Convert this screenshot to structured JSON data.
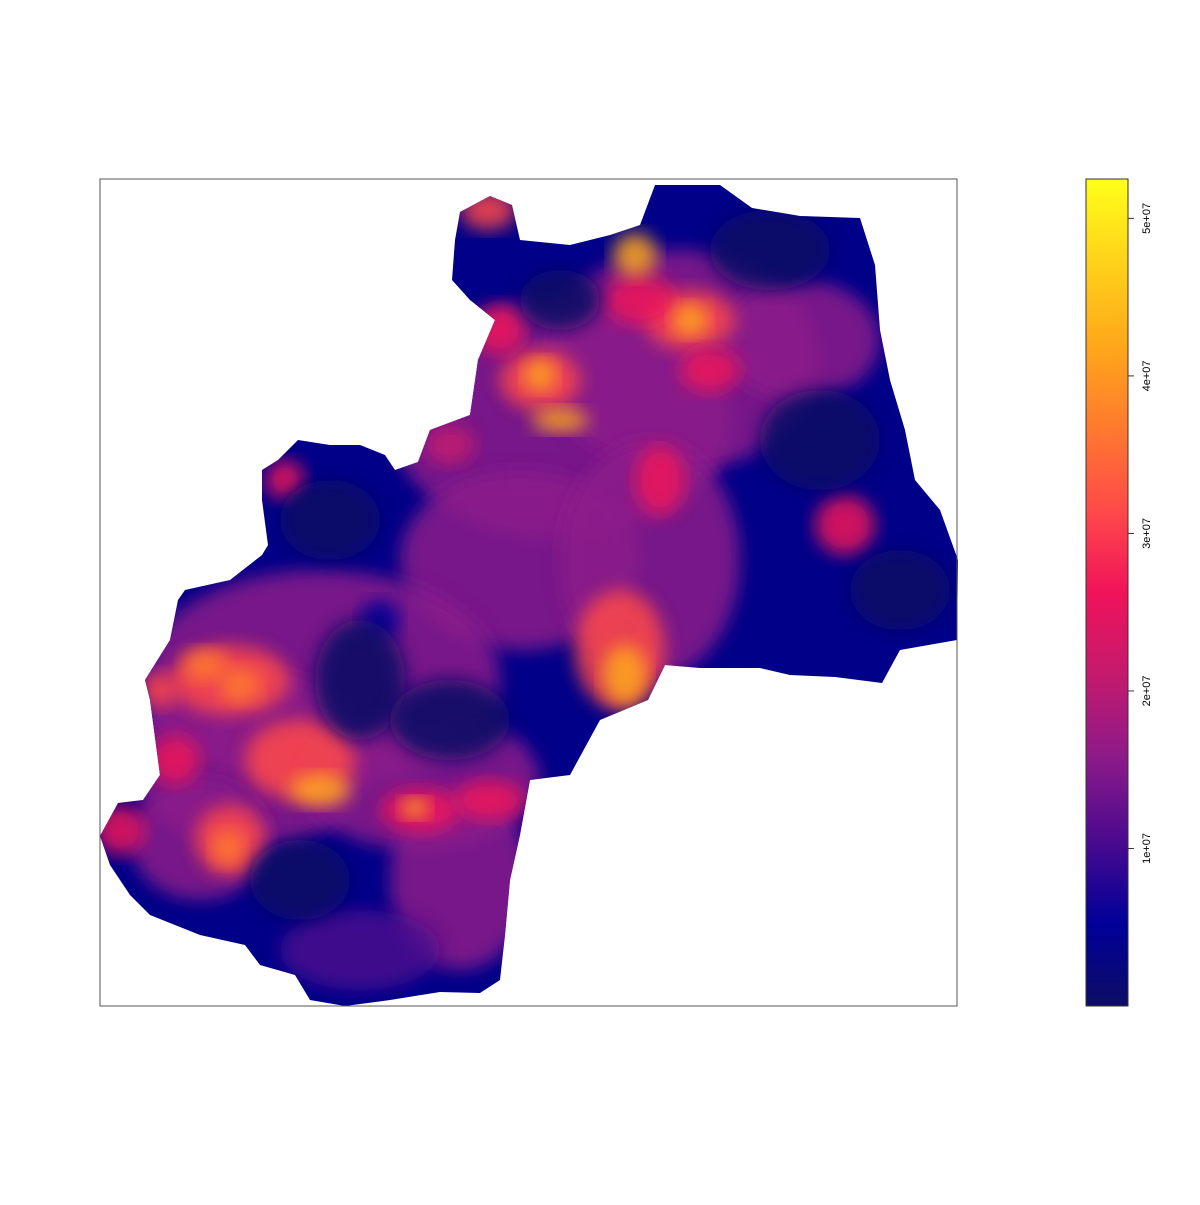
{
  "chart_data": {
    "type": "heatmap",
    "title": "",
    "xlabel": "",
    "ylabel": "",
    "legend": {
      "position": "right",
      "range": [
        0,
        52500000
      ],
      "ticks": [
        {
          "value": 10000000,
          "label": "1e+07"
        },
        {
          "value": 20000000,
          "label": "2e+07"
        },
        {
          "value": 30000000,
          "label": "3e+07"
        },
        {
          "value": 40000000,
          "label": "4e+07"
        },
        {
          "value": 50000000,
          "label": "5e+07"
        }
      ],
      "colors": [
        "#0d0d66",
        "#000099",
        "#4b0a8f",
        "#8c1a8a",
        "#c41a6e",
        "#f0135a",
        "#ff4a4a",
        "#ff7a2e",
        "#ffa81a",
        "#ffd21a",
        "#ffff1a"
      ]
    },
    "grid": false,
    "axes_visible": false
  }
}
